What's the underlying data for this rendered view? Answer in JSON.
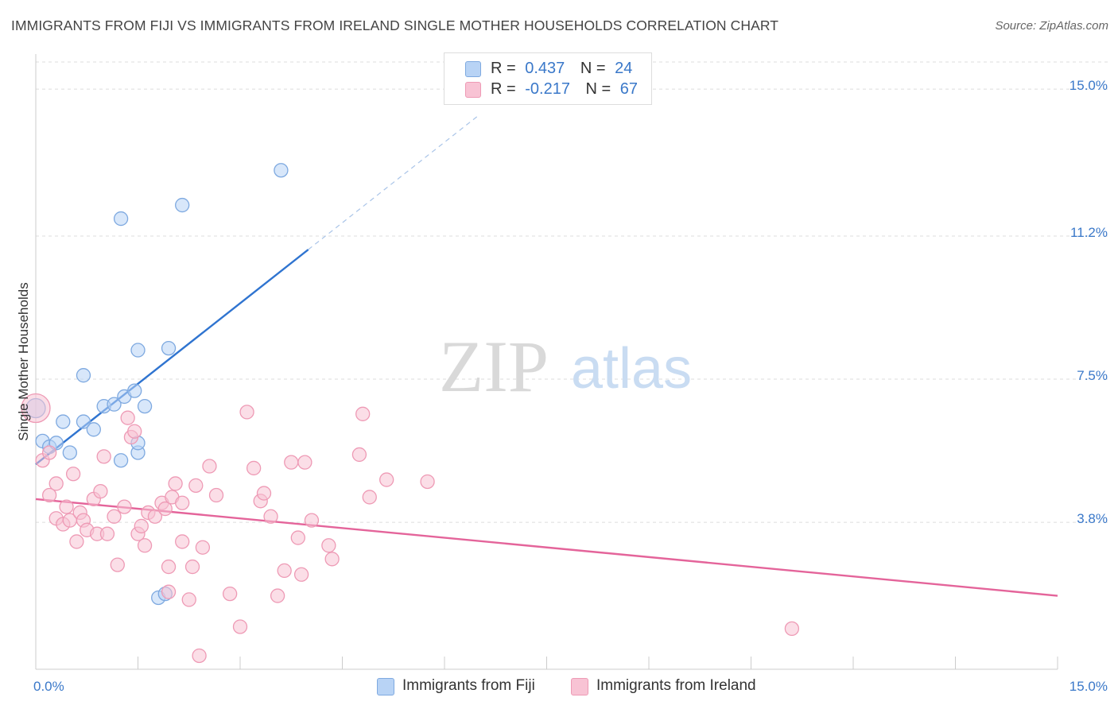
{
  "title": "IMMIGRANTS FROM FIJI VS IMMIGRANTS FROM IRELAND SINGLE MOTHER HOUSEHOLDS CORRELATION CHART",
  "source": "Source: ZipAtlas.com",
  "watermark": {
    "zip": "ZIP",
    "atlas": "atlas"
  },
  "legend": {
    "fiji": {
      "r_label": "R =",
      "r_value": "0.437",
      "n_label": "N =",
      "n_value": "24"
    },
    "ireland": {
      "r_label": "R =",
      "r_value": "-0.217",
      "n_label": "N =",
      "n_value": "67"
    }
  },
  "bottom_legend": {
    "fiji": "Immigrants from Fiji",
    "ireland": "Immigrants from Ireland"
  },
  "colors": {
    "fiji_fill": "#b8d3f5",
    "fiji_stroke": "#7ea9e0",
    "fiji_line": "#2f74d0",
    "ireland_fill": "#f8c3d4",
    "ireland_stroke": "#ee9ab5",
    "ireland_line": "#e4649a",
    "tick_label": "#3a78c9",
    "grid": "#dddddd"
  },
  "chart_data": {
    "type": "scatter",
    "ylabel": "Single Mother Households",
    "xlim": [
      0,
      15
    ],
    "ylim": [
      0,
      15.7
    ],
    "x_tick_labels": [
      {
        "value": 0,
        "label": "0.0%"
      },
      {
        "value": 15,
        "label": "15.0%"
      }
    ],
    "y_ticks": [
      {
        "value": 3.8,
        "label": "3.8%"
      },
      {
        "value": 7.5,
        "label": "7.5%"
      },
      {
        "value": 11.2,
        "label": "11.2%"
      },
      {
        "value": 15.0,
        "label": "15.0%"
      }
    ],
    "grid": true,
    "legend_position": "top-center",
    "series": [
      {
        "name": "Immigrants from Fiji",
        "key": "fiji",
        "points": [
          [
            0.0,
            6.75
          ],
          [
            0.1,
            5.9
          ],
          [
            0.2,
            5.75
          ],
          [
            0.3,
            5.85
          ],
          [
            0.5,
            5.6
          ],
          [
            0.4,
            6.4
          ],
          [
            0.7,
            7.6
          ],
          [
            0.7,
            6.4
          ],
          [
            0.85,
            6.2
          ],
          [
            1.0,
            6.8
          ],
          [
            1.15,
            6.85
          ],
          [
            1.3,
            7.05
          ],
          [
            1.45,
            7.2
          ],
          [
            1.6,
            6.8
          ],
          [
            1.5,
            8.25
          ],
          [
            1.95,
            8.3
          ],
          [
            1.25,
            5.4
          ],
          [
            1.25,
            11.65
          ],
          [
            2.15,
            12.0
          ],
          [
            3.6,
            12.9
          ],
          [
            1.5,
            5.6
          ],
          [
            1.5,
            5.85
          ],
          [
            1.8,
            1.85
          ],
          [
            1.9,
            1.95
          ]
        ],
        "trend": {
          "x0": 0.0,
          "y0": 5.3,
          "x1": 4.0,
          "y1": 10.85,
          "dash_to_x": 6.5
        }
      },
      {
        "name": "Immigrants from Ireland",
        "key": "ireland",
        "points": [
          [
            0.0,
            6.75
          ],
          [
            0.1,
            5.4
          ],
          [
            0.2,
            5.6
          ],
          [
            0.2,
            4.5
          ],
          [
            0.3,
            4.8
          ],
          [
            0.3,
            3.9
          ],
          [
            0.4,
            3.75
          ],
          [
            0.45,
            4.2
          ],
          [
            0.5,
            3.85
          ],
          [
            0.55,
            5.05
          ],
          [
            0.6,
            3.3
          ],
          [
            0.65,
            4.05
          ],
          [
            0.7,
            3.85
          ],
          [
            0.75,
            3.6
          ],
          [
            0.85,
            4.4
          ],
          [
            0.9,
            3.5
          ],
          [
            0.95,
            4.6
          ],
          [
            1.0,
            5.5
          ],
          [
            1.05,
            3.5
          ],
          [
            1.15,
            3.95
          ],
          [
            1.2,
            2.7
          ],
          [
            1.3,
            4.2
          ],
          [
            1.35,
            6.5
          ],
          [
            1.4,
            6.0
          ],
          [
            1.45,
            6.15
          ],
          [
            1.5,
            3.5
          ],
          [
            1.55,
            3.7
          ],
          [
            1.6,
            3.2
          ],
          [
            1.65,
            4.05
          ],
          [
            1.75,
            3.95
          ],
          [
            1.85,
            4.3
          ],
          [
            1.9,
            4.15
          ],
          [
            1.95,
            2.65
          ],
          [
            2.0,
            4.45
          ],
          [
            2.05,
            4.8
          ],
          [
            2.15,
            4.3
          ],
          [
            2.15,
            3.3
          ],
          [
            2.25,
            1.8
          ],
          [
            2.3,
            2.65
          ],
          [
            2.35,
            4.75
          ],
          [
            2.45,
            3.15
          ],
          [
            2.55,
            5.25
          ],
          [
            2.65,
            4.5
          ],
          [
            2.85,
            1.95
          ],
          [
            3.0,
            1.1
          ],
          [
            2.4,
            0.35
          ],
          [
            3.1,
            6.65
          ],
          [
            3.2,
            5.2
          ],
          [
            3.3,
            4.35
          ],
          [
            3.35,
            4.55
          ],
          [
            3.45,
            3.95
          ],
          [
            3.55,
            1.9
          ],
          [
            3.65,
            2.55
          ],
          [
            3.75,
            5.35
          ],
          [
            3.85,
            3.4
          ],
          [
            3.9,
            2.45
          ],
          [
            3.95,
            5.35
          ],
          [
            4.05,
            3.85
          ],
          [
            4.3,
            3.2
          ],
          [
            4.35,
            2.85
          ],
          [
            4.75,
            5.55
          ],
          [
            4.8,
            6.6
          ],
          [
            4.9,
            4.45
          ],
          [
            5.15,
            4.9
          ],
          [
            5.75,
            4.85
          ],
          [
            11.1,
            1.05
          ],
          [
            1.95,
            2.0
          ]
        ],
        "trend": {
          "x0": 0.0,
          "y0": 4.4,
          "x1": 15.0,
          "y1": 1.9
        }
      }
    ]
  }
}
